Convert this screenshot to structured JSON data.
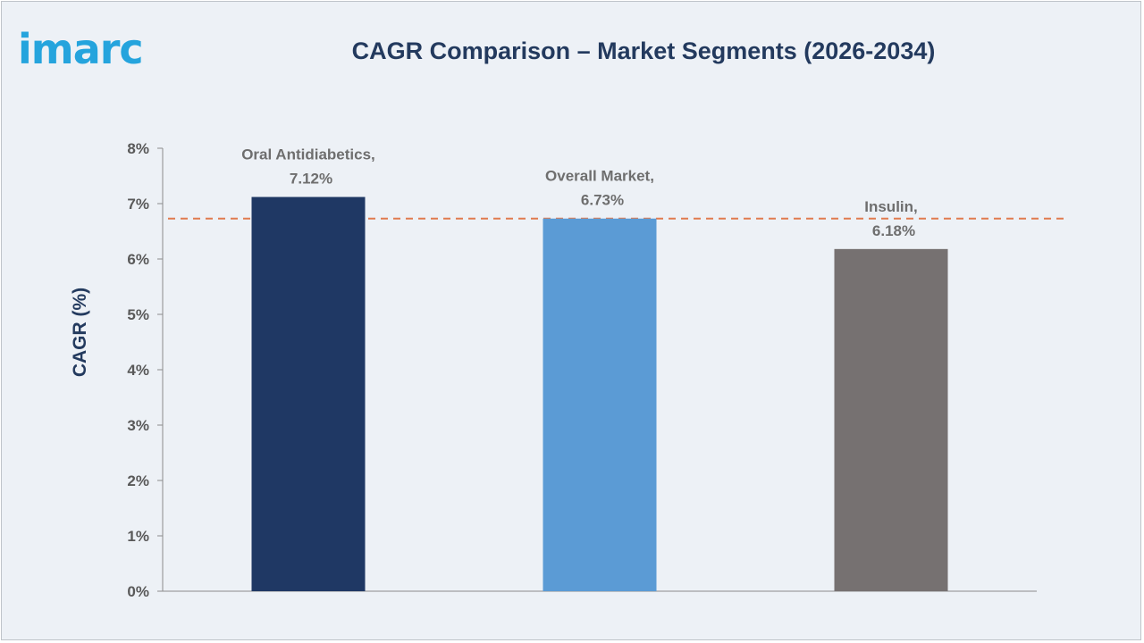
{
  "brand": {
    "logo_text": "imarc",
    "logo_color": "#25a4dd"
  },
  "chart_data": {
    "type": "bar",
    "title": "CAGR Comparison – Market Segments (2026-2034)",
    "ylabel": "CAGR (%)",
    "xlabel": "",
    "categories": [
      "Oral Antidiabetics",
      "Overall Market",
      "Insulin"
    ],
    "values": [
      7.12,
      6.73,
      6.18
    ],
    "data_labels": [
      [
        "Oral Antidiabetics,",
        "7.12%"
      ],
      [
        "Overall Market,",
        "6.73%"
      ],
      [
        "Insulin,",
        "6.18%"
      ]
    ],
    "colors": [
      "#1f3864",
      "#5b9bd5",
      "#767171"
    ],
    "ylim": [
      0,
      8
    ],
    "yticks": [
      "0%",
      "1%",
      "2%",
      "3%",
      "4%",
      "5%",
      "6%",
      "7%",
      "8%"
    ],
    "reference_line": {
      "value": 6.73,
      "style": "dashed",
      "color": "#e07b4f"
    },
    "grid": false,
    "legend": "none"
  }
}
